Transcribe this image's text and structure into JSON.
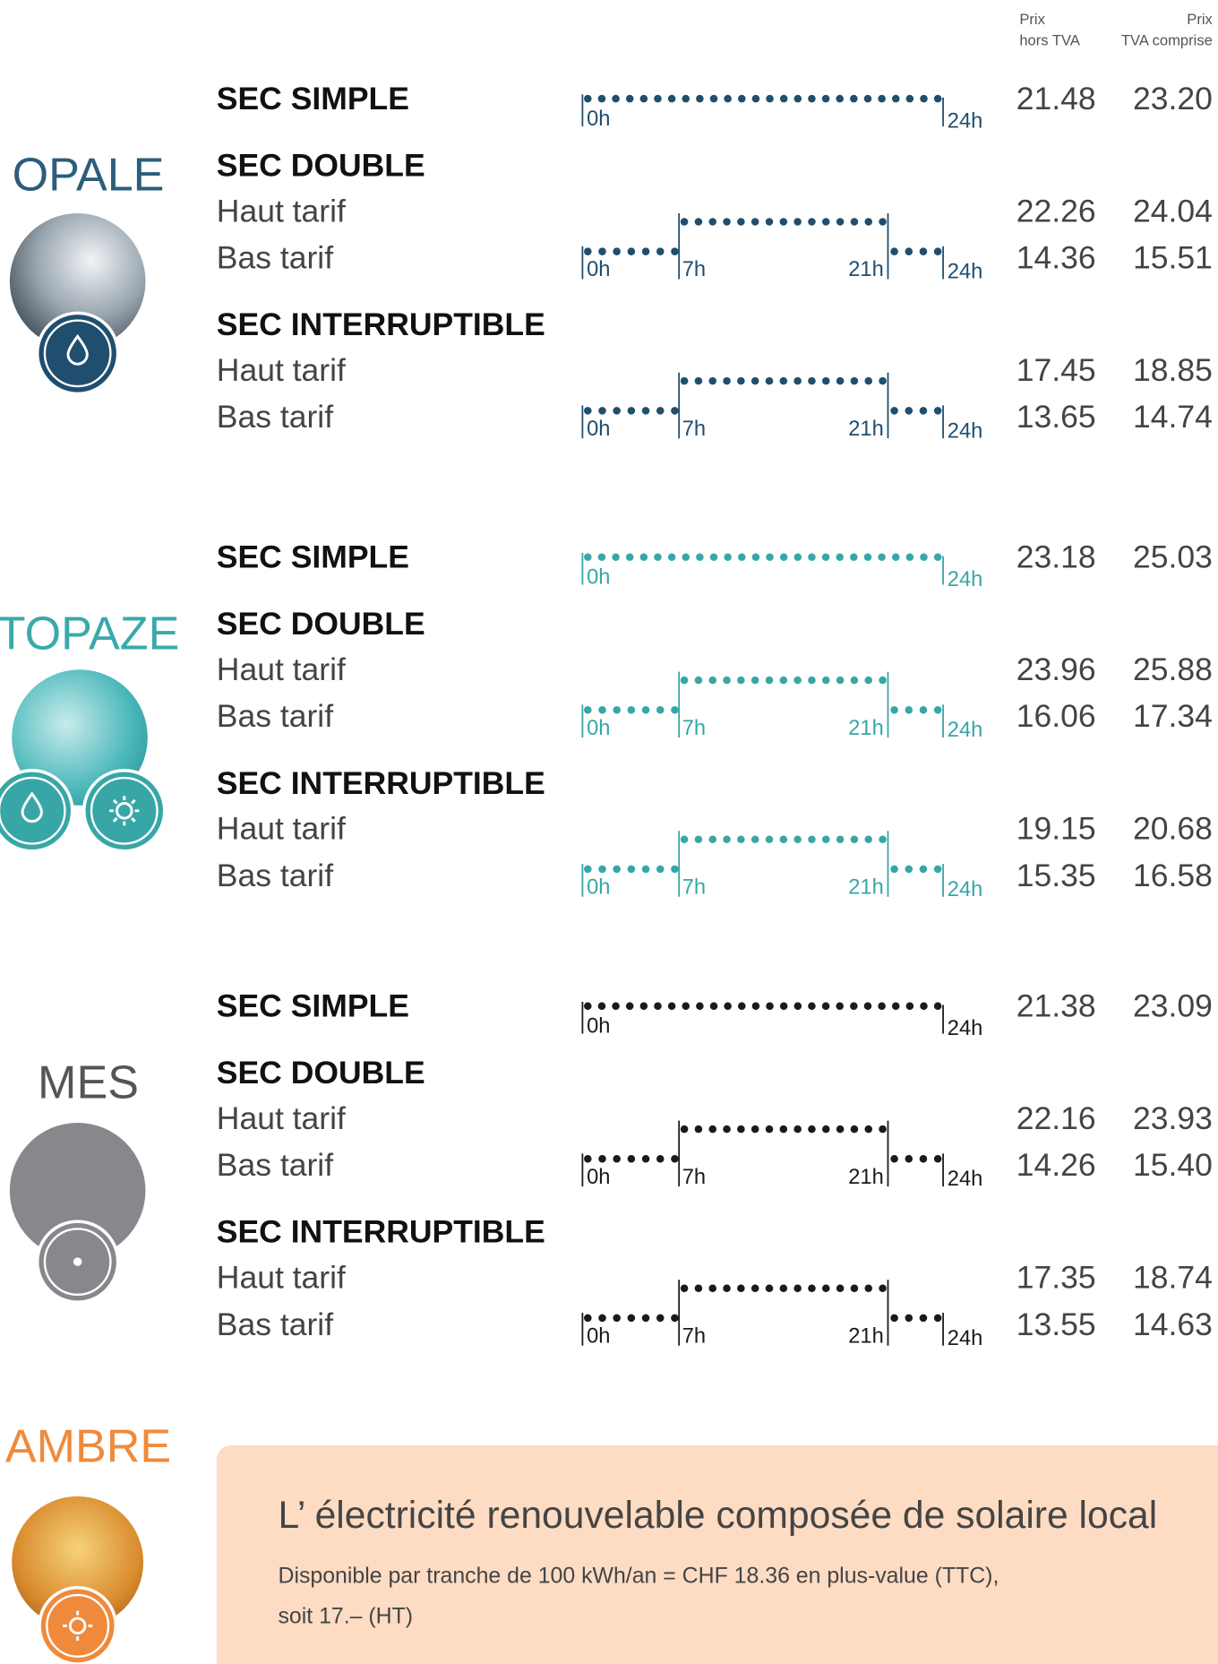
{
  "header": {
    "price_ht": [
      "Prix",
      "hors TVA"
    ],
    "price_ttc": [
      "Prix",
      "TVA comprise"
    ]
  },
  "timeline": {
    "start": "0h",
    "end": "24h",
    "peak_start": "7h",
    "peak_end": "21h"
  },
  "sections": [
    {
      "name": "OPALE",
      "color": "#1f4e6e",
      "title_color": "#2c5d7c",
      "tariffs": [
        {
          "title": "SEC SIMPLE",
          "ht": "21.48",
          "ttc": "23.20"
        },
        {
          "title": "SEC DOUBLE",
          "rows": [
            {
              "label": "Haut tarif",
              "ht": "22.26",
              "ttc": "24.04"
            },
            {
              "label": "Bas tarif",
              "ht": "14.36",
              "ttc": "15.51"
            }
          ]
        },
        {
          "title": "SEC INTERRUPTIBLE",
          "rows": [
            {
              "label": "Haut tarif",
              "ht": "17.45",
              "ttc": "18.85"
            },
            {
              "label": "Bas tarif",
              "ht": "13.65",
              "ttc": "14.74"
            }
          ]
        }
      ]
    },
    {
      "name": "TOPAZE",
      "color": "#38a6a6",
      "title_color": "#3aa9ab",
      "tariffs": [
        {
          "title": "SEC SIMPLE",
          "ht": "23.18",
          "ttc": "25.03"
        },
        {
          "title": "SEC DOUBLE",
          "rows": [
            {
              "label": "Haut tarif",
              "ht": "23.96",
              "ttc": "25.88"
            },
            {
              "label": "Bas tarif",
              "ht": "16.06",
              "ttc": "17.34"
            }
          ]
        },
        {
          "title": "SEC INTERRUPTIBLE",
          "rows": [
            {
              "label": "Haut tarif",
              "ht": "19.15",
              "ttc": "20.68"
            },
            {
              "label": "Bas tarif",
              "ht": "15.35",
              "ttc": "16.58"
            }
          ]
        }
      ]
    },
    {
      "name": "MES",
      "color": "#1a1a1a",
      "title_color": "#555555",
      "tariffs": [
        {
          "title": "SEC SIMPLE",
          "ht": "21.38",
          "ttc": "23.09"
        },
        {
          "title": "SEC DOUBLE",
          "rows": [
            {
              "label": "Haut tarif",
              "ht": "22.16",
              "ttc": "23.93"
            },
            {
              "label": "Bas tarif",
              "ht": "14.26",
              "ttc": "15.40"
            }
          ]
        },
        {
          "title": "SEC INTERRUPTIBLE",
          "rows": [
            {
              "label": "Haut tarif",
              "ht": "17.35",
              "ttc": "18.74"
            },
            {
              "label": "Bas tarif",
              "ht": "13.55",
              "ttc": "14.63"
            }
          ]
        }
      ]
    }
  ],
  "ambre": {
    "name": "AMBRE",
    "heading": "L’ électricité renouvelable composée de solaire local",
    "text": [
      "Disponible par tranche de 100 kWh/an = CHF 18.36 en plus-value (TTC),",
      "soit 17.– (HT)"
    ]
  }
}
